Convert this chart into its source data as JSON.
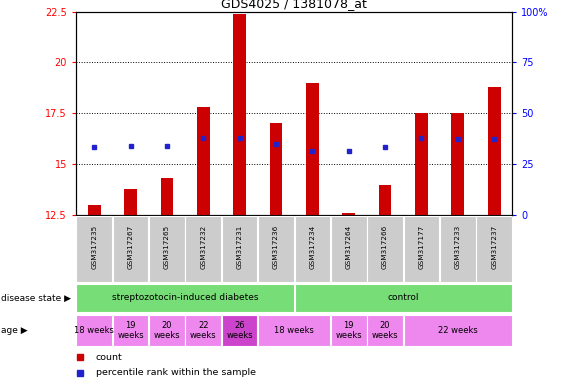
{
  "title": "GDS4025 / 1381078_at",
  "samples": [
    "GSM317235",
    "GSM317267",
    "GSM317265",
    "GSM317232",
    "GSM317231",
    "GSM317236",
    "GSM317234",
    "GSM317264",
    "GSM317266",
    "GSM317177",
    "GSM317233",
    "GSM317237"
  ],
  "counts": [
    13.0,
    13.8,
    14.3,
    17.8,
    22.4,
    17.0,
    19.0,
    12.6,
    14.0,
    17.5,
    17.5,
    18.8
  ],
  "percentiles": [
    15.85,
    15.9,
    15.9,
    16.3,
    16.3,
    16.0,
    15.65,
    15.65,
    15.85,
    16.3,
    16.25,
    16.25
  ],
  "ymin": 12.5,
  "ymax": 22.5,
  "y2min": 0,
  "y2max": 100,
  "yticks": [
    12.5,
    15.0,
    17.5,
    20.0,
    22.5
  ],
  "y2ticks": [
    0,
    25,
    50,
    75,
    100
  ],
  "bar_color": "#cc0000",
  "dot_color": "#2222cc",
  "bar_width": 0.35,
  "ds_groups": [
    {
      "label": "streptozotocin-induced diabetes",
      "start": 0,
      "end": 6,
      "color": "#77dd77"
    },
    {
      "label": "control",
      "start": 6,
      "end": 12,
      "color": "#77dd77"
    }
  ],
  "age_groups": [
    {
      "label": "18 weeks",
      "start": 0,
      "end": 1,
      "color": "#ee88ee",
      "two_line": false
    },
    {
      "label": "19\nweeks",
      "start": 1,
      "end": 2,
      "color": "#ee88ee",
      "two_line": true
    },
    {
      "label": "20\nweeks",
      "start": 2,
      "end": 3,
      "color": "#ee88ee",
      "two_line": true
    },
    {
      "label": "22\nweeks",
      "start": 3,
      "end": 4,
      "color": "#ee88ee",
      "two_line": true
    },
    {
      "label": "26\nweeks",
      "start": 4,
      "end": 5,
      "color": "#cc44cc",
      "two_line": true
    },
    {
      "label": "18 weeks",
      "start": 5,
      "end": 7,
      "color": "#ee88ee",
      "two_line": false
    },
    {
      "label": "19\nweeks",
      "start": 7,
      "end": 8,
      "color": "#ee88ee",
      "two_line": true
    },
    {
      "label": "20\nweeks",
      "start": 8,
      "end": 9,
      "color": "#ee88ee",
      "two_line": true
    },
    {
      "label": "22 weeks",
      "start": 9,
      "end": 12,
      "color": "#ee88ee",
      "two_line": false
    }
  ],
  "legend_count_color": "#cc0000",
  "legend_dot_color": "#2222cc"
}
